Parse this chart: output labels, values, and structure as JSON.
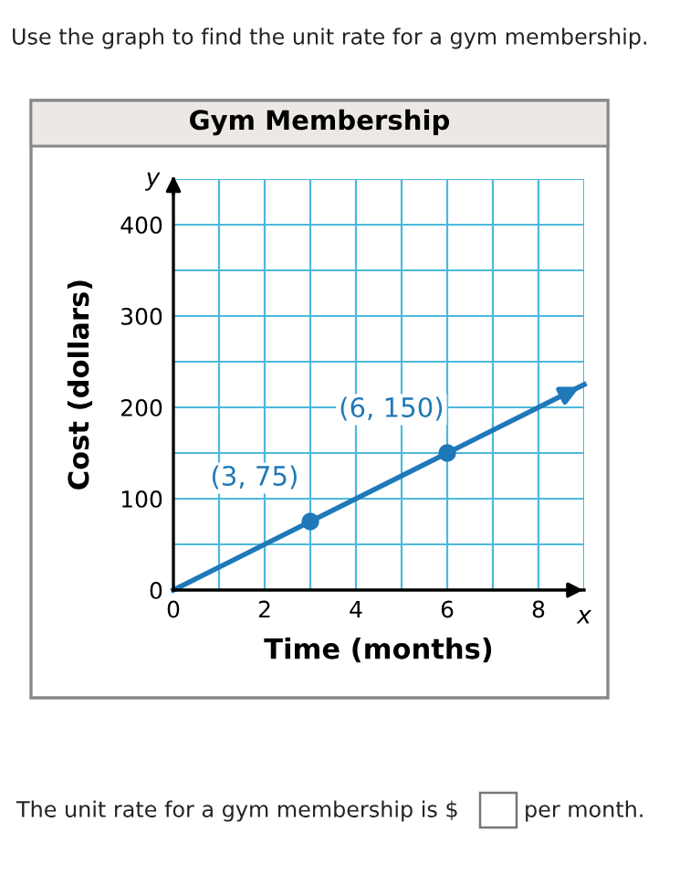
{
  "chart_data": {
    "type": "line",
    "title": "Gym Membership",
    "xlabel": "Time (months)",
    "ylabel": "Cost (dollars)",
    "series": [
      {
        "color": "#1f78b8",
        "x": [
          0,
          9
        ],
        "values": [
          0,
          225
        ]
      },
      {
        "type": "scatter",
        "color": "#1f78b8",
        "x": [
          3,
          6
        ],
        "values": [
          75,
          150
        ],
        "marker": "circle"
      }
    ],
    "xlim": [
      0,
      9
    ],
    "ylim": [
      0,
      450
    ],
    "xticks": [
      0,
      {
        "value": 1,
        "label": null
      },
      2,
      {
        "value": 3,
        "label": null
      },
      4,
      {
        "value": 5,
        "label": null
      },
      6,
      {
        "value": 7,
        "label": null
      },
      8,
      {
        "value": 9,
        "label": null
      }
    ],
    "yticks": [
      0,
      {
        "value": 50,
        "label": null
      },
      100,
      {
        "value": 150,
        "label": null
      },
      200,
      {
        "value": 250,
        "label": null
      },
      300,
      {
        "value": 350,
        "label": null
      },
      400,
      {
        "value": 450,
        "label": null
      }
    ],
    "grid": true,
    "annotations": [
      "Use the graph to find the unit rate for a gym membership.",
      {
        "text": "(3, 75)",
        "x": 3,
        "y": 75
      },
      {
        "text": "(6, 150)",
        "x": 6,
        "y": 150
      },
      "x",
      "y",
      "The unit rate for a gym membership is $",
      "per month."
    ]
  }
}
